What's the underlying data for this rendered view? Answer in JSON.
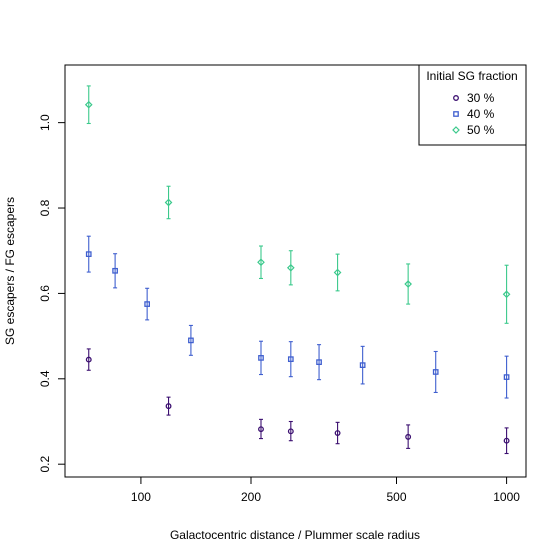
{
  "chart_data": {
    "type": "scatter",
    "title": "",
    "xlabel": "Galactocentric distance / Plummer scale radius",
    "ylabel": "SG escapers / FG escapers",
    "xscale": "log",
    "xlim": [
      62,
      1130
    ],
    "ylim": [
      0.17,
      1.135
    ],
    "x_ticks": [
      100,
      200,
      500,
      1000
    ],
    "y_ticks": [
      0.2,
      0.4,
      0.6,
      0.8,
      1.0
    ],
    "y_tick_labels": [
      "0.2",
      "0.4",
      "0.6",
      "0.8",
      "1.0"
    ],
    "grid": false,
    "legend": {
      "title": "Initial SG fraction",
      "position": "top-right",
      "entries": [
        "30 %",
        "40 %",
        "50 %"
      ]
    },
    "series": [
      {
        "name": "30 %",
        "color": "#3b0f70",
        "marker": "circle",
        "points": [
          {
            "x": 72,
            "y": 0.445,
            "lo": 0.42,
            "hi": 0.47
          },
          {
            "x": 119,
            "y": 0.336,
            "lo": 0.315,
            "hi": 0.357
          },
          {
            "x": 213,
            "y": 0.282,
            "lo": 0.26,
            "hi": 0.305
          },
          {
            "x": 257,
            "y": 0.277,
            "lo": 0.255,
            "hi": 0.3
          },
          {
            "x": 345,
            "y": 0.273,
            "lo": 0.248,
            "hi": 0.298
          },
          {
            "x": 538,
            "y": 0.264,
            "lo": 0.237,
            "hi": 0.292
          },
          {
            "x": 1000,
            "y": 0.255,
            "lo": 0.225,
            "hi": 0.285
          }
        ]
      },
      {
        "name": "40 %",
        "color": "#3f5fcf",
        "marker": "square",
        "points": [
          {
            "x": 72,
            "y": 0.692,
            "lo": 0.65,
            "hi": 0.734
          },
          {
            "x": 85,
            "y": 0.653,
            "lo": 0.613,
            "hi": 0.693
          },
          {
            "x": 104,
            "y": 0.575,
            "lo": 0.538,
            "hi": 0.612
          },
          {
            "x": 137,
            "y": 0.49,
            "lo": 0.455,
            "hi": 0.525
          },
          {
            "x": 213,
            "y": 0.449,
            "lo": 0.41,
            "hi": 0.488
          },
          {
            "x": 257,
            "y": 0.446,
            "lo": 0.405,
            "hi": 0.487
          },
          {
            "x": 307,
            "y": 0.439,
            "lo": 0.398,
            "hi": 0.48
          },
          {
            "x": 404,
            "y": 0.432,
            "lo": 0.388,
            "hi": 0.476
          },
          {
            "x": 640,
            "y": 0.416,
            "lo": 0.368,
            "hi": 0.464
          },
          {
            "x": 1000,
            "y": 0.404,
            "lo": 0.355,
            "hi": 0.453
          }
        ]
      },
      {
        "name": "50 %",
        "color": "#3bc98c",
        "marker": "diamond",
        "points": [
          {
            "x": 72,
            "y": 1.042,
            "lo": 0.998,
            "hi": 1.086
          },
          {
            "x": 119,
            "y": 0.813,
            "lo": 0.775,
            "hi": 0.851
          },
          {
            "x": 213,
            "y": 0.673,
            "lo": 0.635,
            "hi": 0.711
          },
          {
            "x": 257,
            "y": 0.66,
            "lo": 0.62,
            "hi": 0.7
          },
          {
            "x": 345,
            "y": 0.649,
            "lo": 0.606,
            "hi": 0.692
          },
          {
            "x": 538,
            "y": 0.622,
            "lo": 0.575,
            "hi": 0.669
          },
          {
            "x": 1000,
            "y": 0.598,
            "lo": 0.53,
            "hi": 0.666
          }
        ]
      }
    ]
  }
}
